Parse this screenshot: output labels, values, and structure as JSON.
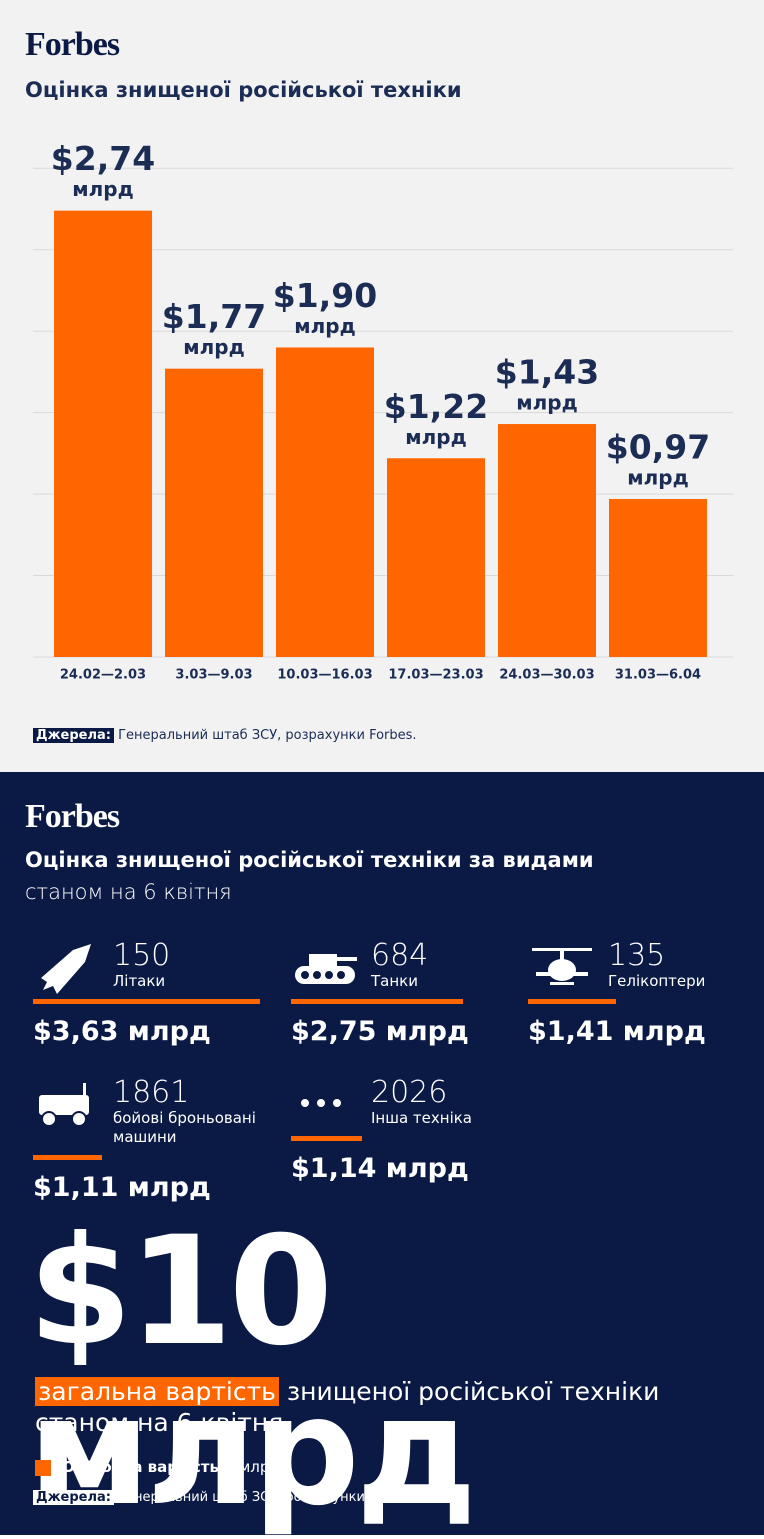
{
  "brand": "Forbes",
  "source_label": "Джерела:",
  "source": "Генеральний штаб ЗСУ, розрахунки Forbes.",
  "chart_data": [
    {
      "type": "bar",
      "title": "Оцінка знищеної російської техніки",
      "categories": [
        "24.02—2.03",
        "3.03—9.03",
        "10.03—16.03",
        "17.03—23.03",
        "24.03—30.03",
        "31.03—6.04"
      ],
      "values": [
        2.74,
        1.77,
        1.9,
        1.22,
        1.43,
        0.97
      ],
      "value_labels": [
        "$2,74",
        "$1,77",
        "$1,90",
        "$1,22",
        "$1,43",
        "$0,97"
      ],
      "value_unit": "млрд",
      "color": "#ff6600",
      "ylim": [
        0,
        3.1
      ],
      "yticks": [
        0,
        0.5,
        1,
        1.5,
        2,
        2.5,
        3
      ],
      "grid": true
    },
    {
      "type": "hbar",
      "title": "Оцінка знищеної російської техніки за видами",
      "subtitle": "станом на 6 квітня",
      "categories": [
        "Літаки",
        "Танки",
        "Гелікоптери",
        "бойові броньовані машини",
        "Інша техніка"
      ],
      "counts": [
        150,
        684,
        135,
        1861,
        2026
      ],
      "values": [
        3.63,
        2.75,
        1.41,
        1.11,
        1.14
      ],
      "value_labels": [
        "$3,63 млрд",
        "$2,75 млрд",
        "$1,41 млрд",
        "$1,11 млрд",
        "$1,14 млрд"
      ],
      "color": "#ff6600",
      "xlim": [
        0,
        4
      ],
      "legend": {
        "label": "Оціночна вартість,",
        "unit": "$млрд"
      },
      "total": "$10 млрд",
      "total_highlight": "загальна вартість",
      "total_caption": "знищеної російської техніки станом на 6 квітня"
    }
  ]
}
